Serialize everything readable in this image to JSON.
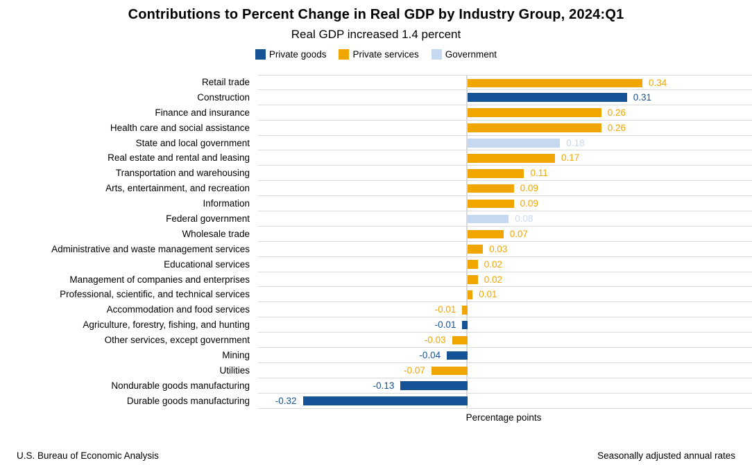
{
  "header": {
    "title": "Contributions to Percent Change in Real GDP by Industry Group, 2024:Q1",
    "subtitle": "Real GDP increased 1.4 percent"
  },
  "chart_data": {
    "type": "bar",
    "orientation": "horizontal",
    "xlabel": "Percentage points",
    "xlim": [
      -0.407,
      0.553
    ],
    "grid": true,
    "legend_position": "top",
    "groups": [
      {
        "name": "Private goods",
        "color": "#155296"
      },
      {
        "name": "Private services",
        "color": "#F0A500"
      },
      {
        "name": "Government",
        "color": "#C6D8F0"
      }
    ],
    "gridline_color": "#d9d9d9",
    "bars": [
      {
        "category": "Retail trade",
        "value": 0.34,
        "group": "Private services"
      },
      {
        "category": "Construction",
        "value": 0.31,
        "group": "Private goods"
      },
      {
        "category": "Finance and insurance",
        "value": 0.26,
        "group": "Private services"
      },
      {
        "category": "Health care and social assistance",
        "value": 0.26,
        "group": "Private services"
      },
      {
        "category": "State and local government",
        "value": 0.18,
        "group": "Government"
      },
      {
        "category": "Real estate and rental and leasing",
        "value": 0.17,
        "group": "Private services"
      },
      {
        "category": "Transportation and warehousing",
        "value": 0.11,
        "group": "Private services"
      },
      {
        "category": "Arts, entertainment, and recreation",
        "value": 0.09,
        "group": "Private services"
      },
      {
        "category": "Information",
        "value": 0.09,
        "group": "Private services"
      },
      {
        "category": "Federal government",
        "value": 0.08,
        "group": "Government"
      },
      {
        "category": "Wholesale trade",
        "value": 0.07,
        "group": "Private services"
      },
      {
        "category": "Administrative and waste management services",
        "value": 0.03,
        "group": "Private services"
      },
      {
        "category": "Educational services",
        "value": 0.02,
        "group": "Private services"
      },
      {
        "category": "Management of companies and enterprises",
        "value": 0.02,
        "group": "Private services"
      },
      {
        "category": "Professional, scientific, and technical services",
        "value": 0.01,
        "group": "Private services"
      },
      {
        "category": "Accommodation and food services",
        "value": -0.01,
        "group": "Private services"
      },
      {
        "category": "Agriculture, forestry, fishing, and hunting",
        "value": -0.01,
        "group": "Private goods"
      },
      {
        "category": "Other services, except government",
        "value": -0.03,
        "group": "Private services"
      },
      {
        "category": "Mining",
        "value": -0.04,
        "group": "Private goods"
      },
      {
        "category": "Utilities",
        "value": -0.07,
        "group": "Private services"
      },
      {
        "category": "Nondurable goods manufacturing",
        "value": -0.13,
        "group": "Private goods"
      },
      {
        "category": "Durable goods manufacturing",
        "value": -0.32,
        "group": "Private goods"
      }
    ]
  },
  "footer": {
    "left": "U.S. Bureau of Economic Analysis",
    "right": "Seasonally adjusted annual rates"
  }
}
